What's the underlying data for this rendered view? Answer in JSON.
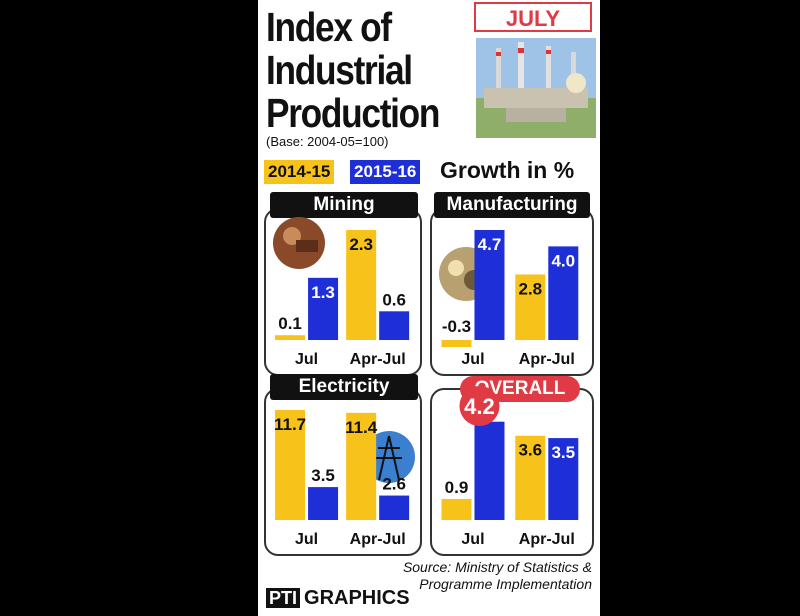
{
  "header": {
    "title_lines": [
      "Index of",
      "Industrial",
      "Production"
    ],
    "month": "JULY",
    "base": "(Base: 2004-05=100)",
    "growth_label": "Growth in %"
  },
  "legend": [
    {
      "name": "2014-15",
      "color": "#f7c21a"
    },
    {
      "name": "2015-16",
      "color": "#1f2fd8"
    }
  ],
  "footer": {
    "source_line1": "Source: Ministry of Statistics &",
    "source_line2": "Programme Implementation",
    "logo_mark": "PTI",
    "logo_text": "GRAPHICS"
  },
  "chart_data": [
    {
      "type": "bar",
      "title": "Mining",
      "categories": [
        "Jul",
        "Apr-Jul"
      ],
      "series": [
        {
          "name": "2014-15",
          "values": [
            0.1,
            2.3
          ]
        },
        {
          "name": "2015-16",
          "values": [
            1.3,
            0.6
          ]
        }
      ]
    },
    {
      "type": "bar",
      "title": "Manufacturing",
      "categories": [
        "Jul",
        "Apr-Jul"
      ],
      "series": [
        {
          "name": "2014-15",
          "values": [
            -0.3,
            2.8
          ]
        },
        {
          "name": "2015-16",
          "values": [
            4.7,
            4.0
          ]
        }
      ]
    },
    {
      "type": "bar",
      "title": "Electricity",
      "categories": [
        "Jul",
        "Apr-Jul"
      ],
      "series": [
        {
          "name": "2014-15",
          "values": [
            11.7,
            11.4
          ]
        },
        {
          "name": "2015-16",
          "values": [
            3.5,
            2.6
          ]
        }
      ]
    },
    {
      "type": "bar",
      "title": "OVERALL",
      "categories": [
        "Jul",
        "Apr-Jul"
      ],
      "series": [
        {
          "name": "2014-15",
          "values": [
            0.9,
            3.6
          ]
        },
        {
          "name": "2015-16",
          "values": [
            4.2,
            3.5
          ]
        }
      ]
    }
  ]
}
